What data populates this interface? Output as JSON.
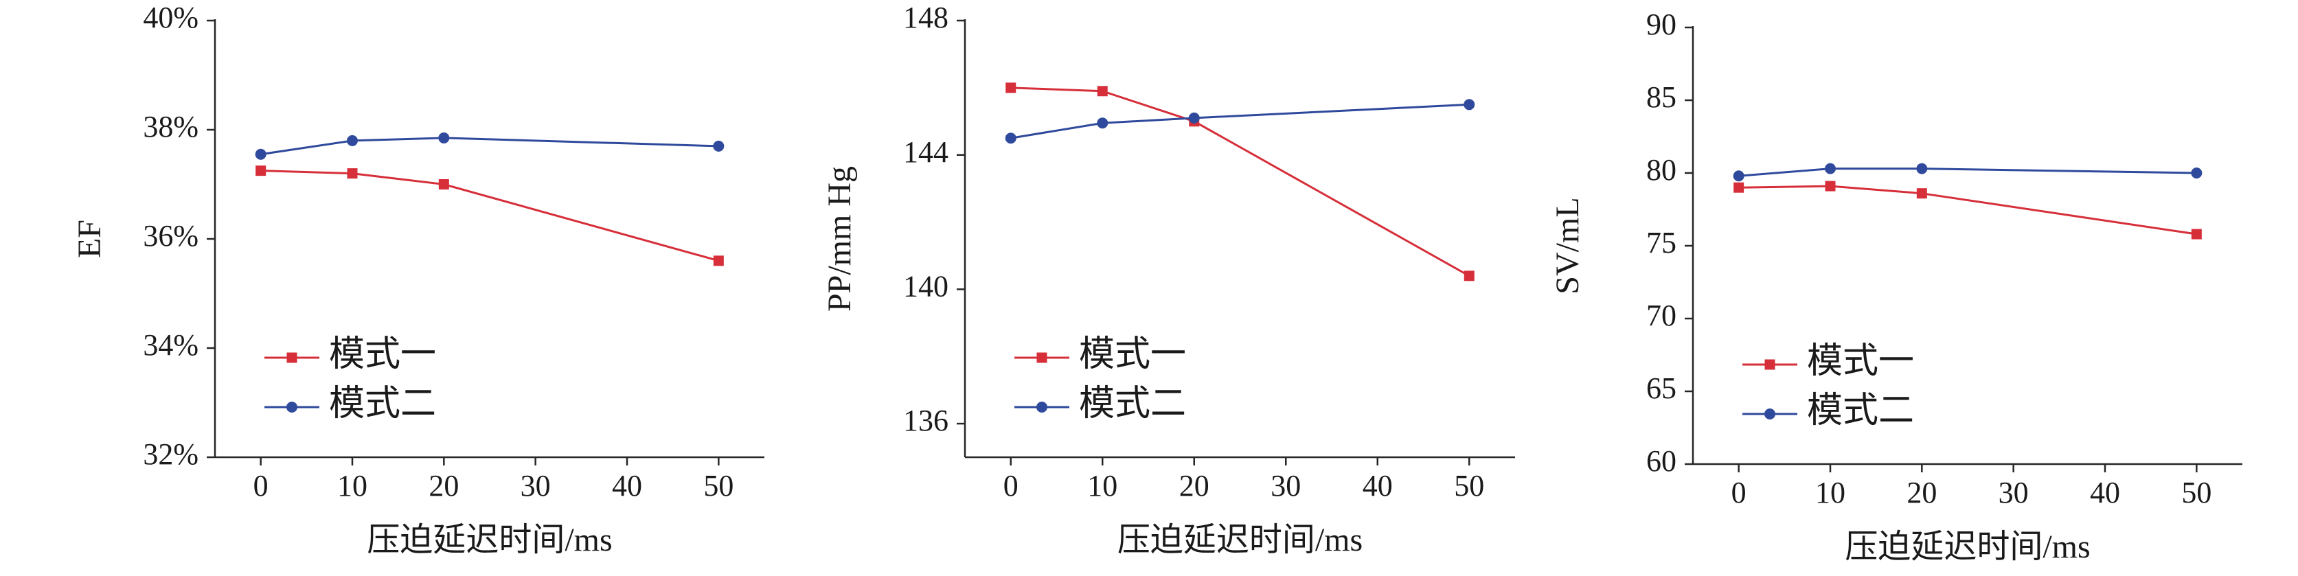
{
  "chart_data": [
    {
      "type": "line",
      "x": [
        0,
        10,
        20,
        50
      ],
      "xticks": [
        0,
        10,
        20,
        30,
        40,
        50
      ],
      "xlim": [
        -5,
        55
      ],
      "xlabel": "压迫延迟时间/ms",
      "ylabel": "EF",
      "ylim": [
        32,
        40
      ],
      "yticks": [
        32,
        34,
        36,
        38,
        40
      ],
      "ytick_labels": [
        "32%",
        "34%",
        "36%",
        "38%",
        "40%"
      ],
      "grid": false,
      "legend": "bottom-left",
      "series": [
        {
          "name": "模式一",
          "color": "#d62f3a",
          "marker": "square",
          "values": [
            37.25,
            37.2,
            37.0,
            35.6
          ]
        },
        {
          "name": "模式二",
          "color": "#2f4a9c",
          "marker": "circle",
          "values": [
            37.55,
            37.8,
            37.85,
            37.7
          ]
        }
      ]
    },
    {
      "type": "line",
      "x": [
        0,
        10,
        20,
        50
      ],
      "xticks": [
        0,
        10,
        20,
        30,
        40,
        50
      ],
      "xlim": [
        -5,
        55
      ],
      "xlabel": "压迫延迟时间/ms",
      "ylabel": "PP/mm Hg",
      "ylim": [
        135,
        148
      ],
      "yticks": [
        136,
        140,
        144,
        148
      ],
      "ytick_labels": [
        "136",
        "140",
        "144",
        "148"
      ],
      "grid": false,
      "legend": "bottom-left",
      "series": [
        {
          "name": "模式一",
          "color": "#d62f3a",
          "marker": "square",
          "values": [
            146.0,
            145.9,
            145.0,
            140.4
          ]
        },
        {
          "name": "模式二",
          "color": "#2f4a9c",
          "marker": "circle",
          "values": [
            144.5,
            144.95,
            145.1,
            145.5
          ]
        }
      ]
    },
    {
      "type": "line",
      "x": [
        0,
        10,
        20,
        50
      ],
      "xticks": [
        0,
        10,
        20,
        30,
        40,
        50
      ],
      "xlim": [
        -5,
        55
      ],
      "xlabel": "压迫延迟时间/ms",
      "ylabel": "SV/mL",
      "ylim": [
        60,
        90
      ],
      "yticks": [
        60,
        65,
        70,
        75,
        80,
        85,
        90
      ],
      "ytick_labels": [
        "60",
        "65",
        "70",
        "75",
        "80",
        "85",
        "90"
      ],
      "grid": false,
      "legend": "bottom-left",
      "series": [
        {
          "name": "模式一",
          "color": "#d62f3a",
          "marker": "square",
          "values": [
            79.0,
            79.1,
            78.6,
            75.8
          ]
        },
        {
          "name": "模式二",
          "color": "#2f4a9c",
          "marker": "circle",
          "values": [
            79.8,
            80.3,
            80.3,
            80.0
          ]
        }
      ]
    }
  ]
}
